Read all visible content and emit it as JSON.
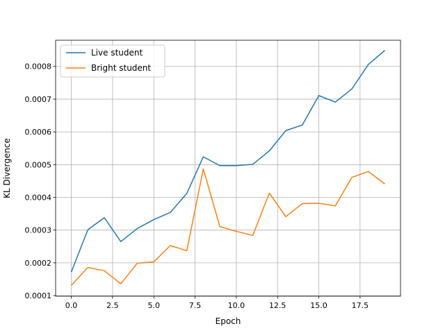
{
  "chart_data": {
    "type": "line",
    "xlabel": "Epoch",
    "ylabel": "KL Divergence",
    "xlim": [
      -0.95,
      19.95
    ],
    "ylim": [
      9.8e-05,
      0.00088
    ],
    "xticks": [
      0.0,
      2.5,
      5.0,
      7.5,
      10.0,
      12.5,
      15.0,
      17.5
    ],
    "xtick_labels": [
      "0.0",
      "2.5",
      "5.0",
      "7.5",
      "10.0",
      "12.5",
      "15.0",
      "17.5"
    ],
    "yticks": [
      0.0001,
      0.0002,
      0.0003,
      0.0004,
      0.0005,
      0.0006,
      0.0007,
      0.0008
    ],
    "ytick_labels": [
      "0.0001",
      "0.0002",
      "0.0003",
      "0.0004",
      "0.0005",
      "0.0006",
      "0.0007",
      "0.0008"
    ],
    "grid": true,
    "legend_position": "upper-left",
    "x": [
      0,
      1,
      2,
      3,
      4,
      5,
      6,
      7,
      8,
      9,
      10,
      11,
      12,
      13,
      14,
      15,
      16,
      17,
      18,
      19
    ],
    "series": [
      {
        "name": "Live student",
        "color": "#1f77b4",
        "values": [
          0.000172,
          0.000301,
          0.000338,
          0.000265,
          0.000305,
          0.000332,
          0.000354,
          0.000412,
          0.000524,
          0.000497,
          0.000497,
          0.000501,
          0.000542,
          0.000604,
          0.000621,
          0.000711,
          0.000691,
          0.000731,
          0.000806,
          0.000849
        ]
      },
      {
        "name": "Bright student",
        "color": "#ff7f0e",
        "values": [
          0.000131,
          0.000186,
          0.000176,
          0.000136,
          0.000199,
          0.000203,
          0.000253,
          0.000237,
          0.000487,
          0.000311,
          0.000296,
          0.000284,
          0.000413,
          0.000341,
          0.000381,
          0.000382,
          0.000374,
          0.000461,
          0.000479,
          0.000441
        ]
      }
    ]
  }
}
